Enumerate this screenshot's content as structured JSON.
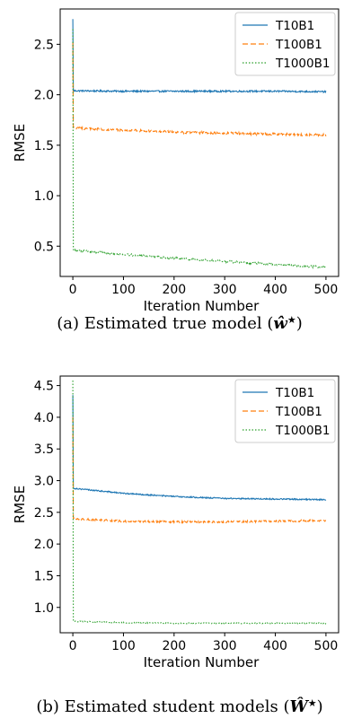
{
  "figure": {
    "caption_a_prefix": "(a) Estimated true model (",
    "caption_a_var": "ŵ",
    "caption_a_suffix": ")",
    "caption_b_prefix": "(b) Estimated student models (",
    "caption_b_var": "Ŵ",
    "caption_b_suffix": ")",
    "caption_star": "★"
  },
  "chart_data": [
    {
      "type": "line",
      "xlabel": "Iteration Number",
      "ylabel": "RMSE",
      "xlim": [
        -25,
        525
      ],
      "ylim": [
        0.2,
        2.85
      ],
      "xticks": [
        0,
        100,
        200,
        300,
        400,
        500
      ],
      "yticks": [
        0.5,
        1.0,
        1.5,
        2.0,
        2.5
      ],
      "legend_position": "top-right",
      "series": [
        {
          "name": "T10B1",
          "color": "#1f77b4",
          "dash": "solid",
          "start": 2.75,
          "x": [
            1,
            100,
            200,
            300,
            400,
            500
          ],
          "y": [
            2.04,
            2.035,
            2.035,
            2.035,
            2.035,
            2.03
          ],
          "noise": 0.008
        },
        {
          "name": "T100B1",
          "color": "#ff7f0e",
          "dash": "dashed",
          "start": 2.52,
          "x": [
            1,
            100,
            200,
            300,
            400,
            500
          ],
          "y": [
            1.67,
            1.65,
            1.63,
            1.62,
            1.61,
            1.6
          ],
          "noise": 0.012
        },
        {
          "name": "T1000B1",
          "color": "#2ca02c",
          "dash": "dotted",
          "start": 2.65,
          "x": [
            1,
            100,
            200,
            300,
            400,
            500
          ],
          "y": [
            0.46,
            0.42,
            0.38,
            0.35,
            0.32,
            0.29
          ],
          "noise": 0.01
        }
      ]
    },
    {
      "type": "line",
      "xlabel": "Iteration Number",
      "ylabel": "RMSE",
      "xlim": [
        -25,
        525
      ],
      "ylim": [
        0.6,
        4.65
      ],
      "xticks": [
        0,
        100,
        200,
        300,
        400,
        500
      ],
      "yticks": [
        1.0,
        1.5,
        2.0,
        2.5,
        3.0,
        3.5,
        4.0,
        4.5
      ],
      "legend_position": "top-right",
      "series": [
        {
          "name": "T10B1",
          "color": "#1f77b4",
          "dash": "solid",
          "start": 4.35,
          "x": [
            1,
            100,
            200,
            300,
            400,
            500
          ],
          "y": [
            2.88,
            2.8,
            2.75,
            2.72,
            2.71,
            2.7
          ],
          "noise": 0.01
        },
        {
          "name": "T100B1",
          "color": "#ff7f0e",
          "dash": "dashed",
          "start": 4.0,
          "x": [
            1,
            100,
            200,
            300,
            400,
            500
          ],
          "y": [
            2.4,
            2.36,
            2.35,
            2.35,
            2.36,
            2.37
          ],
          "noise": 0.015
        },
        {
          "name": "T1000B1",
          "color": "#2ca02c",
          "dash": "dotted",
          "start": 4.58,
          "x": [
            1,
            100,
            200,
            300,
            400,
            500
          ],
          "y": [
            0.78,
            0.76,
            0.75,
            0.75,
            0.75,
            0.75
          ],
          "noise": 0.008
        }
      ]
    }
  ]
}
